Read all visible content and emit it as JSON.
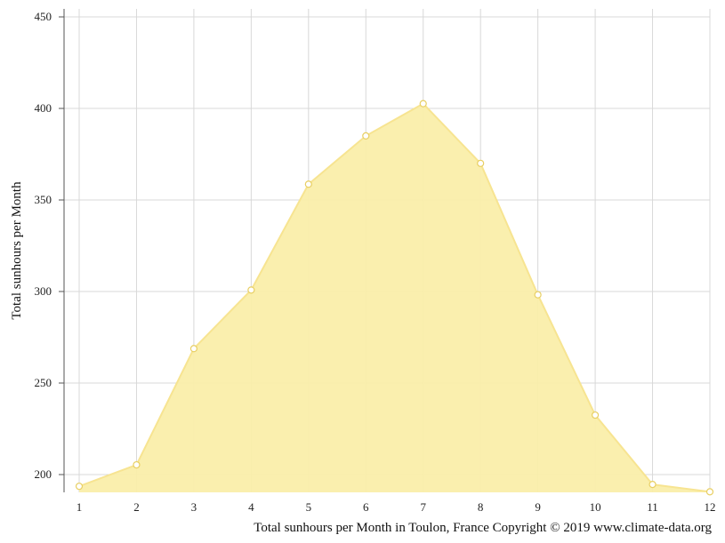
{
  "chart_data": {
    "type": "area",
    "x": [
      1,
      2,
      3,
      4,
      5,
      6,
      7,
      8,
      9,
      10,
      11,
      12
    ],
    "series": [
      {
        "values": [
          193.6,
          205.3,
          268.8,
          300.8,
          358.6,
          385.0,
          402.6,
          370.0,
          298.2,
          232.5,
          194.6,
          190.6
        ]
      }
    ],
    "xlabel": "",
    "ylabel": "Total sunhours per Month",
    "caption": "Total sunhours per Month in Toulon, France Copyright © 2019 www.climate-data.org",
    "xlim": [
      1,
      12
    ],
    "ylim": [
      190,
      455
    ],
    "xticks": [
      "1",
      "2",
      "3",
      "4",
      "5",
      "6",
      "7",
      "8",
      "9",
      "10",
      "11",
      "12"
    ],
    "yticks": [
      "200",
      "250",
      "300",
      "350",
      "400",
      "450"
    ],
    "grid": true,
    "legend": "none",
    "colors": {
      "fill": "#faeeaa",
      "line": "#f7e491",
      "marker_stroke": "#e8cf63",
      "marker_fill": "#ffffff",
      "grid": "#d8d8d8",
      "axis": "#555555"
    }
  }
}
